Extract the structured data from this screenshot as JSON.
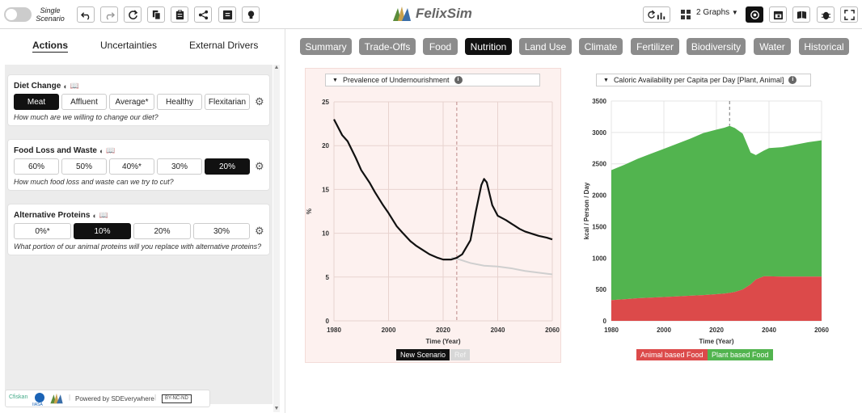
{
  "toolbar": {
    "scenario_label": "Single Scenario",
    "app_name": "FelixSim",
    "graphs_label": "2 Graphs"
  },
  "left_tabs": [
    "Actions",
    "Uncertainties",
    "External Drivers"
  ],
  "cards": [
    {
      "title": "Diet Change",
      "options": [
        "Meat",
        "Affluent",
        "Average*",
        "Healthy",
        "Flexitarian"
      ],
      "selected": "Meat",
      "question": "How much are we willing to change our diet?"
    },
    {
      "title": "Food Loss and Waste",
      "options": [
        "60%",
        "50%",
        "40%*",
        "30%",
        "20%"
      ],
      "selected": "20%",
      "question": "How much food loss and waste can we try to cut?"
    },
    {
      "title": "Alternative Proteins",
      "options": [
        "0%*",
        "10%",
        "20%",
        "30%"
      ],
      "selected": "10%",
      "question": "What portion of our animal proteins will you replace with alternative proteins?"
    }
  ],
  "footer": {
    "powered_by": "Powered by SDEverywhere",
    "license": "BY-NC-ND",
    "logo1": "Cfiskan",
    "logo2": "IIASA"
  },
  "chart_tabs": [
    "Summary",
    "Trade-Offs",
    "Food",
    "Nutrition",
    "Land Use",
    "Climate",
    "Fertilizer",
    "Biodiversity",
    "Water",
    "Historical"
  ],
  "active_chart_tab": "Nutrition",
  "colors": {
    "accent_dark": "#111111",
    "tab_gray": "#8c8c8c",
    "animal_food": "#dc4a4a",
    "plant_food": "#52b44f",
    "ref_line": "#cfcfcf"
  },
  "chart_data": [
    {
      "type": "line",
      "title": "Prevalence of Undernourishment",
      "xlabel": "Time (Year)",
      "ylabel": "%",
      "xlim": [
        1980,
        2060
      ],
      "ylim": [
        0,
        25
      ],
      "xticks": [
        1980,
        2000,
        2020,
        2040,
        2060
      ],
      "yticks": [
        0,
        5,
        10,
        15,
        20,
        25
      ],
      "marker_year": 2025,
      "series": [
        {
          "name": "New Scenario",
          "color": "#111111",
          "x": [
            1980,
            1983,
            1985,
            1988,
            1990,
            1993,
            1995,
            1998,
            2000,
            2003,
            2005,
            2008,
            2010,
            2013,
            2015,
            2018,
            2020,
            2023,
            2025,
            2027,
            2030,
            2032,
            2034,
            2035,
            2036,
            2037,
            2038,
            2040,
            2043,
            2045,
            2048,
            2050,
            2053,
            2055,
            2058,
            2060
          ],
          "y": [
            23,
            21.2,
            20.5,
            18.6,
            17.2,
            15.8,
            14.7,
            13.2,
            12.3,
            10.8,
            10.1,
            9.1,
            8.6,
            8.0,
            7.6,
            7.2,
            7.0,
            7.0,
            7.2,
            7.6,
            9.2,
            12.5,
            15.5,
            16.2,
            15.8,
            14.5,
            13.2,
            12.0,
            11.5,
            11.1,
            10.5,
            10.2,
            9.9,
            9.7,
            9.5,
            9.3
          ]
        },
        {
          "name": "Ref",
          "color": "#cfcfcf",
          "x": [
            2023,
            2025,
            2030,
            2035,
            2040,
            2045,
            2050,
            2055,
            2060
          ],
          "y": [
            7.2,
            7.1,
            6.6,
            6.3,
            6.2,
            6.0,
            5.7,
            5.5,
            5.3
          ]
        }
      ],
      "legend": [
        "New Scenario",
        "Ref"
      ]
    },
    {
      "type": "area",
      "title": "Caloric Availability per Capita per Day [Plant, Animal]",
      "xlabel": "Time (Year)",
      "ylabel": "kcal / Person / Day",
      "xlim": [
        1980,
        2060
      ],
      "ylim": [
        0,
        3500
      ],
      "xticks": [
        1980,
        2000,
        2020,
        2040,
        2060
      ],
      "yticks": [
        0,
        500,
        1000,
        1500,
        2000,
        2500,
        3000,
        3500
      ],
      "marker_year": 2025,
      "x": [
        1980,
        1985,
        1990,
        1995,
        2000,
        2005,
        2010,
        2015,
        2020,
        2023,
        2025,
        2027,
        2030,
        2033,
        2035,
        2038,
        2040,
        2045,
        2050,
        2055,
        2060
      ],
      "series": [
        {
          "name": "Animal based Food",
          "color": "#dc4a4a",
          "values": [
            330,
            345,
            360,
            370,
            380,
            390,
            400,
            410,
            425,
            435,
            445,
            460,
            500,
            580,
            660,
            710,
            710,
            705,
            705,
            705,
            705
          ]
        },
        {
          "name": "Plant based Food",
          "color": "#52b44f",
          "values": [
            2070,
            2140,
            2220,
            2290,
            2360,
            2430,
            2500,
            2580,
            2620,
            2640,
            2660,
            2610,
            2480,
            2100,
            1980,
            2000,
            2040,
            2060,
            2100,
            2140,
            2170
          ]
        }
      ],
      "legend": [
        "Animal based Food",
        "Plant based Food"
      ]
    }
  ]
}
